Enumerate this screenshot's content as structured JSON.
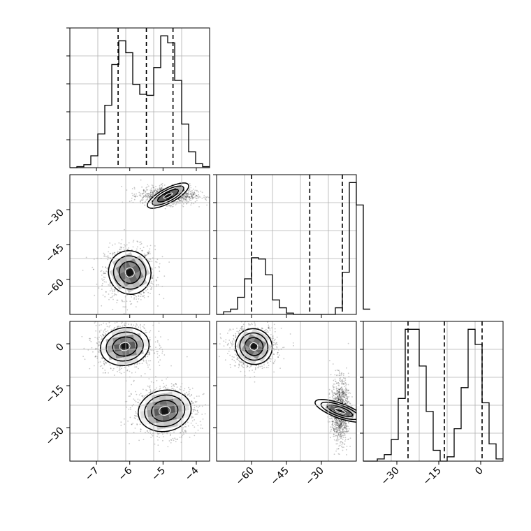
{
  "chart_data": [
    {
      "type": "histogram",
      "panel": "diag-1",
      "xlim": [
        -7.8,
        -3.6
      ],
      "bins": {
        "start": -7.8,
        "width": 0.21,
        "counts": [
          0,
          1,
          3,
          12,
          34,
          63,
          104,
          128,
          116,
          84,
          74,
          73,
          101,
          133,
          126,
          88,
          44,
          16,
          4,
          1
        ]
      },
      "quantiles": [
        -6.35,
        -5.5,
        -4.7
      ],
      "xticks": [
        -7,
        -6,
        -5,
        -4
      ],
      "xtick_labels": [
        "−7",
        "−6",
        "−5",
        "−4"
      ],
      "grid": true
    },
    {
      "type": "scatter",
      "panel": "pair-1-2",
      "style": "2D density: scattered points + binned shading + contours",
      "xlim": [
        -7.8,
        -3.6
      ],
      "ylim": [
        -75,
        -15
      ],
      "modes": [
        {
          "x_center": -6.0,
          "y_center": -57,
          "sx": 0.3,
          "sy": 4.5,
          "n": 1100
        },
        {
          "x_center": -4.85,
          "y_center": -24,
          "sx": 0.33,
          "sy": 1.5,
          "n": 1100
        }
      ],
      "yticks": [
        -30,
        -45,
        -60
      ],
      "ytick_labels": [
        "−30",
        "−45",
        "−60"
      ],
      "grid": true
    },
    {
      "type": "histogram",
      "panel": "diag-2",
      "xlim": [
        -75,
        -15
      ],
      "bins": {
        "start": -75,
        "width": 3,
        "counts": [
          0,
          2,
          4,
          13,
          27,
          43,
          42,
          30,
          11,
          5,
          1,
          0,
          0,
          0,
          0,
          0,
          0,
          5,
          32,
          100,
          83,
          4
        ]
      },
      "quantiles": [
        -60,
        -35,
        -21
      ],
      "grid": true
    },
    {
      "type": "scatter",
      "panel": "pair-1-3",
      "style": "2D density: scattered points + binned shading + contours",
      "xlim": [
        -7.8,
        -3.6
      ],
      "ylim": [
        -42,
        8
      ],
      "modes": [
        {
          "x_center": -6.15,
          "y_center": -1,
          "sx": 0.35,
          "sy": 3.2,
          "n": 1100
        },
        {
          "x_center": -4.95,
          "y_center": -24,
          "sx": 0.38,
          "sy": 3.5,
          "n": 1100
        }
      ],
      "xticks": [
        -7,
        -6,
        -5,
        -4
      ],
      "xtick_labels": [
        "−7",
        "−6",
        "−5",
        "−4"
      ],
      "yticks": [
        0,
        -15,
        -30
      ],
      "ytick_labels": [
        "0",
        "−15",
        "−30"
      ],
      "grid": true
    },
    {
      "type": "scatter",
      "panel": "pair-2-3",
      "style": "2D density: scattered points + binned shading + contours",
      "xlim": [
        -75,
        -15
      ],
      "ylim": [
        -42,
        8
      ],
      "modes": [
        {
          "x_center": -59,
          "y_center": -1,
          "sx": 3.8,
          "sy": 3,
          "n": 1100
        },
        {
          "x_center": -22,
          "y_center": -24,
          "sx": 1.5,
          "sy": 4.5,
          "n": 1100
        }
      ],
      "xticks": [
        -60,
        -45,
        -30
      ],
      "xtick_labels": [
        "−60",
        "−45",
        "−30"
      ],
      "grid": true
    },
    {
      "type": "histogram",
      "panel": "diag-3",
      "xlim": [
        -42,
        8
      ],
      "bins": {
        "start": -42,
        "width": 2.5,
        "counts": [
          0,
          0,
          1,
          3,
          10,
          29,
          61,
          61,
          44,
          23,
          5,
          0,
          2,
          15,
          34,
          61,
          54,
          27,
          8,
          1
        ]
      },
      "quantiles": [
        -26,
        -13,
        0.5
      ],
      "xticks": [
        -30,
        -15,
        0
      ],
      "xtick_labels": [
        "−30",
        "−15",
        "0"
      ],
      "grid": true
    }
  ]
}
